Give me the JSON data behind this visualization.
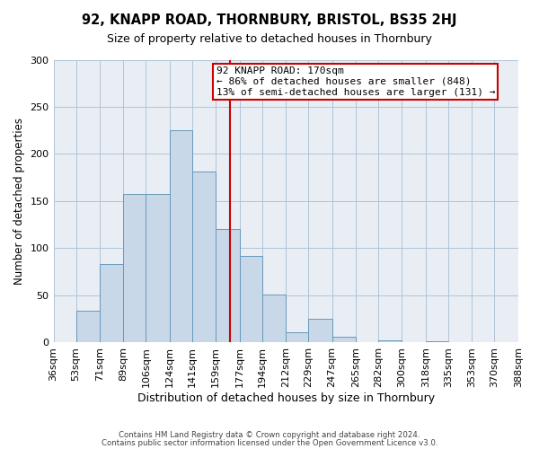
{
  "title": "92, KNAPP ROAD, THORNBURY, BRISTOL, BS35 2HJ",
  "subtitle": "Size of property relative to detached houses in Thornbury",
  "xlabel": "Distribution of detached houses by size in Thornbury",
  "ylabel": "Number of detached properties",
  "bar_color": "#c8d8e8",
  "bar_edge_color": "#6699bb",
  "grid_color": "#b0c4d8",
  "background_color": "#e8eef4",
  "bin_labels": [
    "36sqm",
    "53sqm",
    "71sqm",
    "89sqm",
    "106sqm",
    "124sqm",
    "141sqm",
    "159sqm",
    "177sqm",
    "194sqm",
    "212sqm",
    "229sqm",
    "247sqm",
    "265sqm",
    "282sqm",
    "300sqm",
    "318sqm",
    "335sqm",
    "353sqm",
    "370sqm",
    "388sqm"
  ],
  "bin_edges": [
    36,
    53,
    71,
    89,
    106,
    124,
    141,
    159,
    177,
    194,
    212,
    229,
    247,
    265,
    282,
    300,
    318,
    335,
    353,
    370,
    388
  ],
  "bar_heights": [
    0,
    34,
    83,
    158,
    158,
    225,
    181,
    120,
    92,
    51,
    11,
    25,
    6,
    0,
    2,
    0,
    1,
    0,
    0,
    0,
    1
  ],
  "vline_x": 170,
  "vline_color": "#cc0000",
  "annotation_title": "92 KNAPP ROAD: 170sqm",
  "annotation_line1": "← 86% of detached houses are smaller (848)",
  "annotation_line2": "13% of semi-detached houses are larger (131) →",
  "annotation_box_color": "#cc0000",
  "footer1": "Contains HM Land Registry data © Crown copyright and database right 2024.",
  "footer2": "Contains public sector information licensed under the Open Government Licence v3.0.",
  "ylim": [
    0,
    300
  ],
  "yticks": [
    0,
    50,
    100,
    150,
    200,
    250,
    300
  ]
}
